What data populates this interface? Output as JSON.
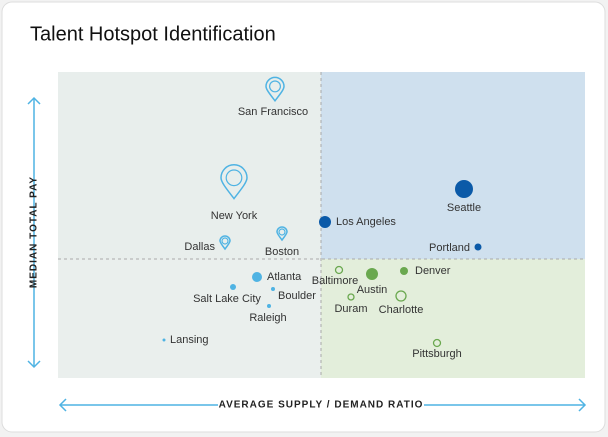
{
  "title": "Talent Hotspot Identification",
  "y_axis_label": "MEDIAN TOTAL PAY",
  "x_axis_label": "AVERAGE SUPPLY / DEMAND RATIO",
  "cities": [
    "San Francisco",
    "New York",
    "Dallas",
    "Boston",
    "Los Angeles",
    "Seattle",
    "Portland",
    "Atlanta",
    "Salt Lake City",
    "Boulder",
    "Raleigh",
    "Lansing",
    "Baltimore",
    "Austin",
    "Denver",
    "Duram",
    "Charlotte",
    "Pittsburgh"
  ]
}
